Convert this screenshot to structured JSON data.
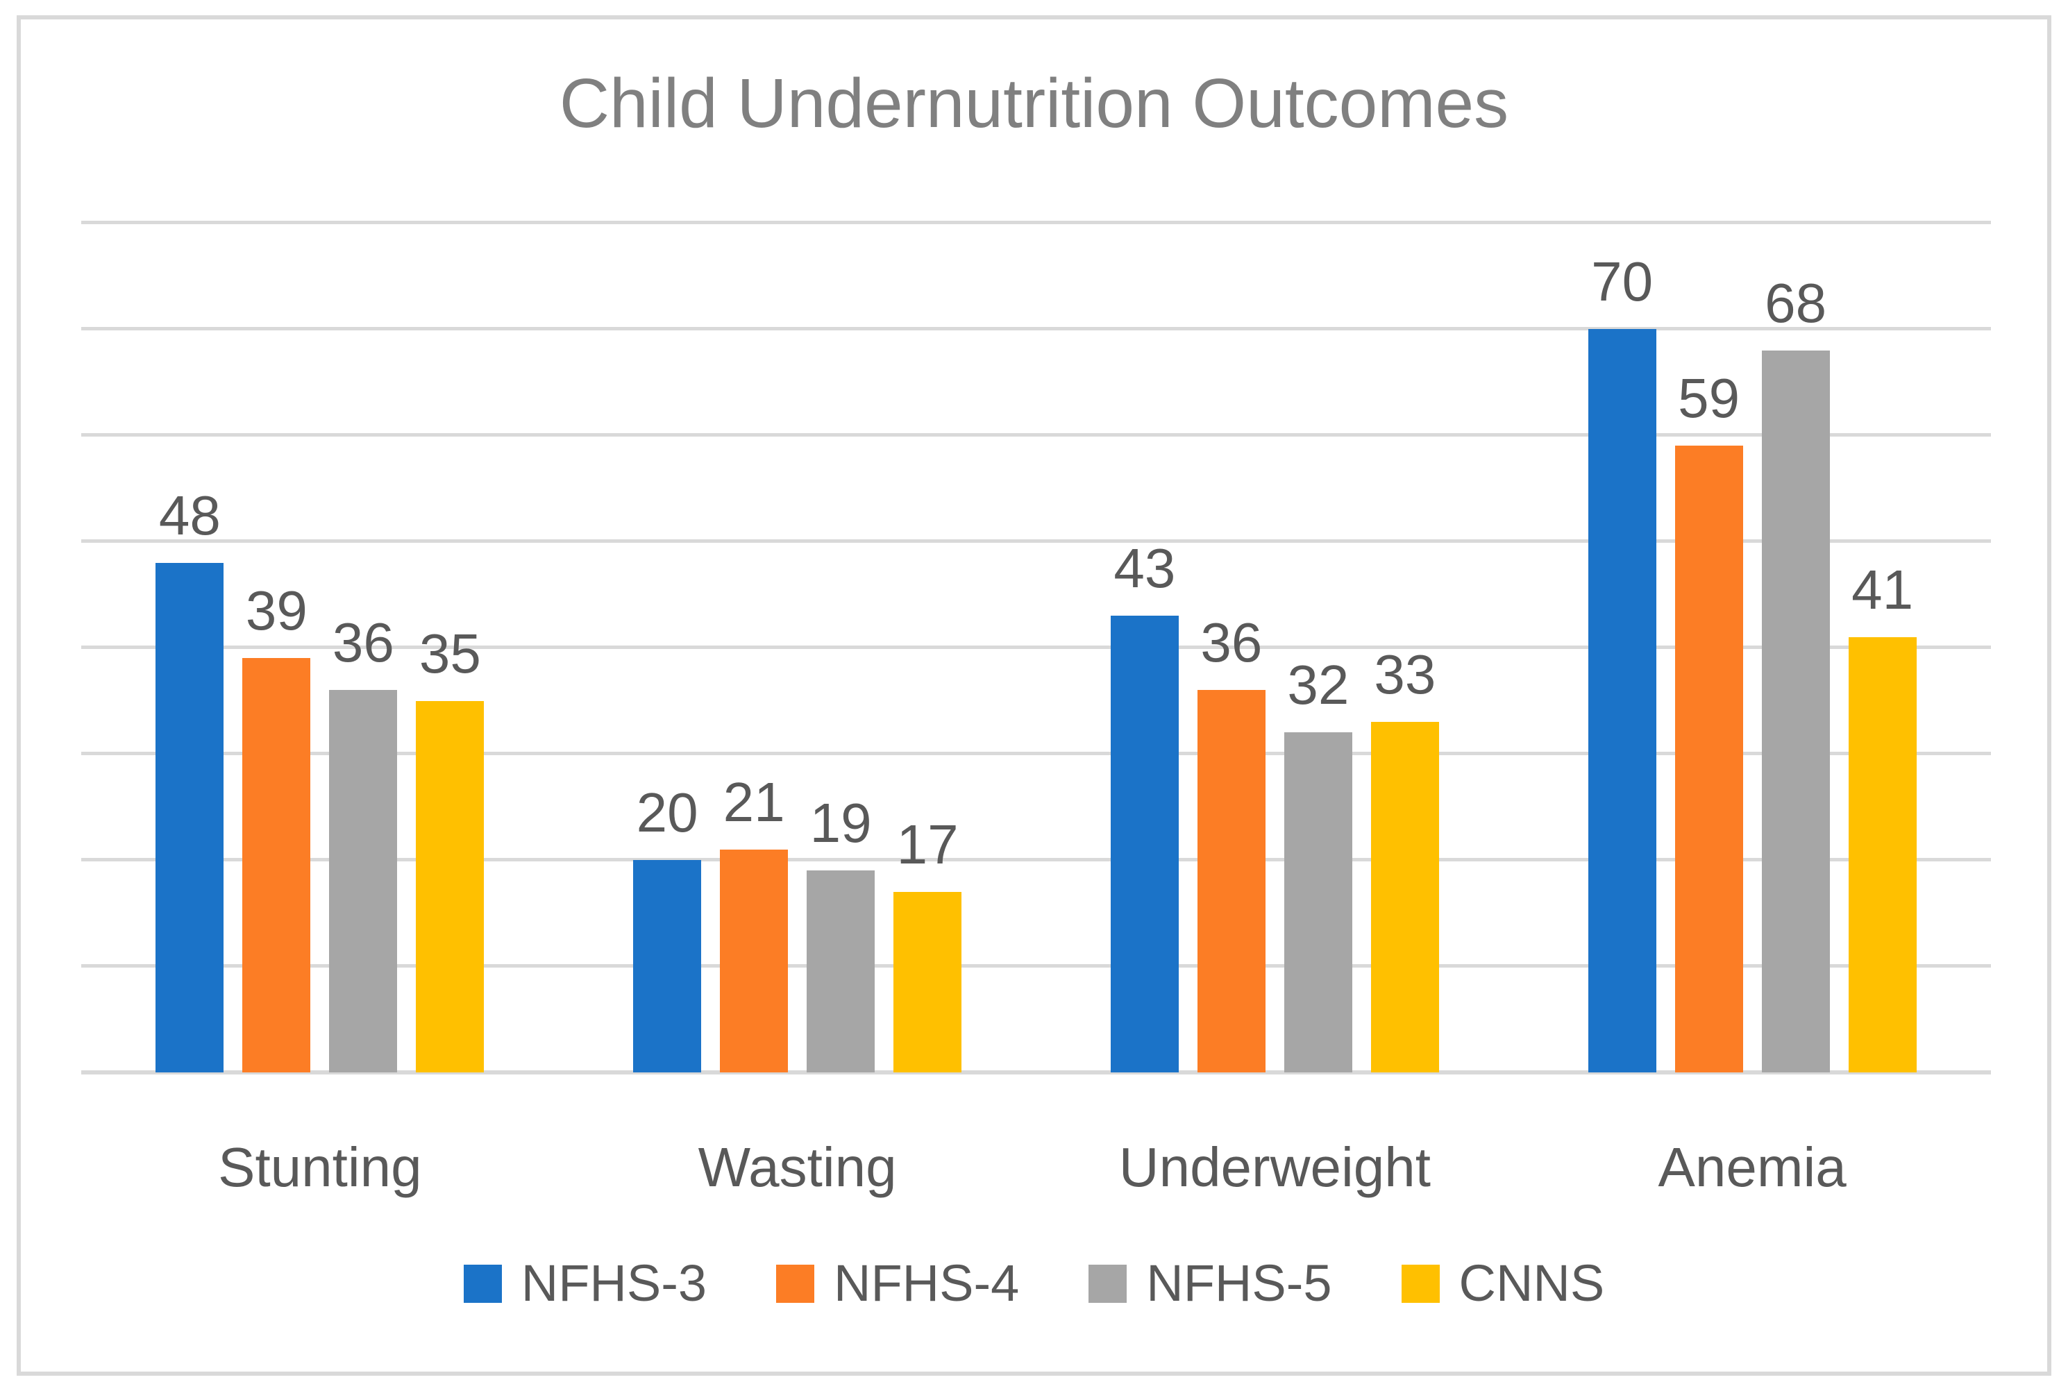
{
  "chart_data": {
    "type": "bar",
    "title": "Child Undernutrition Outcomes",
    "categories": [
      "Stunting",
      "Wasting",
      "Underweight",
      "Anemia"
    ],
    "series": [
      {
        "name": "NFHS-3",
        "color": "#1B73C8",
        "values": [
          48,
          20,
          43,
          70
        ]
      },
      {
        "name": "NFHS-4",
        "color": "#FC7D25",
        "values": [
          39,
          21,
          36,
          59
        ]
      },
      {
        "name": "NFHS-5",
        "color": "#A6A6A6",
        "values": [
          36,
          19,
          32,
          68
        ]
      },
      {
        "name": "CNNS",
        "color": "#FFC000",
        "values": [
          35,
          17,
          33,
          41
        ]
      }
    ],
    "data_labels": true,
    "xlabel": "",
    "ylabel": "",
    "ylim": [
      0,
      80
    ],
    "gridline_step": 10,
    "grid": true,
    "legend_position": "bottom"
  },
  "style": {
    "background": "#FFFFFF",
    "frame_border_color": "#D9D9D9",
    "gridline_color": "#D9D9D9",
    "title_color": "#808080",
    "label_color": "#595959"
  }
}
